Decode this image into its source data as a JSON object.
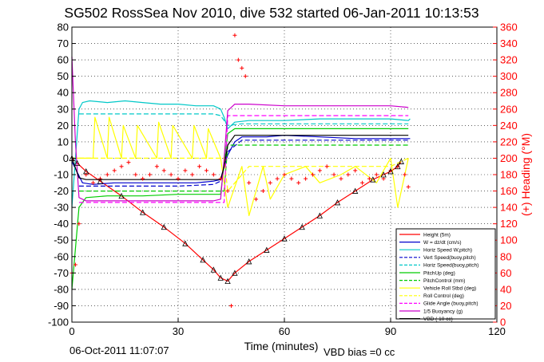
{
  "chart_data": {
    "type": "line",
    "title": "SG502 RossSea Nov 2010, dive 532 started 06-Jan-2011 10:13:53",
    "xlabel": "Time (minutes)",
    "ylabel_right": "(+) Heading (°M)",
    "xlim": [
      0,
      120
    ],
    "ylim": [
      -100,
      80
    ],
    "ylim_right": [
      0,
      360
    ],
    "x_ticks": [
      0,
      30,
      60,
      90,
      120
    ],
    "y_ticks": [
      80,
      70,
      60,
      50,
      40,
      30,
      20,
      10,
      0,
      -10,
      -20,
      -30,
      -40,
      -50,
      -60,
      -70,
      -80,
      -90,
      -100
    ],
    "y_ticks_right": [
      360,
      340,
      320,
      300,
      280,
      260,
      240,
      220,
      200,
      180,
      160,
      140,
      120,
      100,
      80,
      60,
      40,
      20,
      0
    ],
    "grid": true,
    "legend_position": "bottom-right",
    "footer_left": "06-Oct-2011 11:07:07",
    "footer_right": "VBD bias =0 cc",
    "series": [
      {
        "name": "Height (5m)",
        "color": "#ff0000",
        "style": "solid",
        "x": [
          0,
          1.5,
          4,
          8,
          14,
          20,
          26,
          32,
          37,
          40,
          42,
          44,
          46,
          50,
          55,
          60,
          65,
          70,
          75,
          80,
          85,
          88,
          90,
          92,
          93
        ],
        "y": [
          0,
          -3,
          -8,
          -14,
          -23,
          -33,
          -42,
          -52,
          -62,
          -68,
          -73,
          -75,
          -70,
          -63,
          -56,
          -49,
          -42,
          -35,
          -27,
          -20,
          -13,
          -10,
          -8,
          -5,
          -2
        ]
      },
      {
        "name": "W = dz/dt (cm/s)",
        "color": "#0000cc",
        "style": "solid",
        "x": [
          0,
          3,
          6,
          12,
          20,
          30,
          35,
          40,
          42,
          43,
          44,
          46,
          48,
          55,
          60,
          70,
          80,
          90,
          94,
          95.5
        ],
        "y": [
          -2,
          -15,
          -16,
          -15,
          -15,
          -15,
          -15,
          -14,
          -13,
          -5,
          2,
          10,
          13,
          13,
          14,
          13,
          12,
          12,
          12,
          12
        ]
      },
      {
        "name": "Horiz Speed W,pitch)",
        "color": "#00c8c8",
        "style": "solid",
        "x": [
          0,
          2,
          3,
          5,
          10,
          15,
          20,
          25,
          30,
          35,
          40,
          42,
          43,
          44,
          46,
          50,
          60,
          70,
          80,
          90,
          95,
          95.5
        ],
        "y": [
          -30,
          30,
          34,
          35,
          34,
          35,
          34,
          33,
          33,
          32,
          32,
          30,
          25,
          18,
          22,
          23,
          23,
          24,
          24,
          24,
          23,
          24
        ]
      },
      {
        "name": "Vert Speed(buoy,pitch)",
        "color": "#0000cc",
        "style": "dashed",
        "x": [
          2,
          10,
          20,
          30,
          40,
          42,
          44,
          48,
          60,
          70,
          80,
          90,
          95
        ],
        "y": [
          -17,
          -17,
          -17,
          -17,
          -16,
          -14,
          4,
          11,
          11,
          11,
          11,
          11,
          11
        ]
      },
      {
        "name": "Horiz Speed(buoy,pitch)",
        "color": "#00c8c8",
        "style": "dashed",
        "x": [
          2,
          10,
          20,
          30,
          40,
          42,
          44,
          48,
          60,
          70,
          80,
          90,
          95
        ],
        "y": [
          27,
          27,
          27,
          27,
          27,
          26,
          20,
          21,
          21,
          21,
          21,
          21,
          21
        ]
      },
      {
        "name": "PitchUp (deg)",
        "color": "#00cc00",
        "style": "solid",
        "x": [
          0,
          2,
          4,
          10,
          20,
          30,
          40,
          42,
          44,
          46,
          50,
          60,
          70,
          80,
          90,
          95
        ],
        "y": [
          -80,
          -30,
          -24,
          -23,
          -23,
          -22,
          -22,
          -22,
          15,
          18,
          18,
          18,
          18,
          18,
          18,
          18
        ]
      },
      {
        "name": "PitchControl (mm)",
        "color": "#00cc00",
        "style": "dashed",
        "x": [
          2,
          10,
          20,
          30,
          40,
          43,
          44,
          50,
          60,
          70,
          80,
          90,
          95
        ],
        "y": [
          -20,
          -20,
          -20,
          -20,
          -20,
          -20,
          8,
          8,
          8,
          8,
          8,
          8,
          8
        ]
      },
      {
        "name": "Vehicle Roll Stbd (deg)",
        "color": "#ffff00",
        "style": "solid",
        "x": [
          0,
          4,
          6,
          6.5,
          10,
          10.5,
          14,
          14.5,
          18,
          18.5,
          24,
          24.5,
          28,
          28.5,
          34,
          34.5,
          38,
          38.5,
          42,
          44,
          48,
          50,
          54,
          56,
          60,
          66,
          70,
          76,
          80,
          86,
          90,
          92,
          95
        ],
        "y": [
          0,
          0,
          0,
          25,
          0,
          25,
          0,
          20,
          0,
          20,
          0,
          22,
          0,
          20,
          0,
          20,
          0,
          18,
          0,
          -30,
          -5,
          -35,
          -5,
          -25,
          -10,
          -5,
          -15,
          -10,
          -5,
          -15,
          0,
          -30,
          0
        ]
      },
      {
        "name": "Roll Control (deg)",
        "color": "#ffff00",
        "style": "dashed",
        "x": [
          0,
          10,
          20,
          30,
          40,
          43,
          44,
          50,
          60,
          70,
          80,
          90,
          95
        ],
        "y": [
          0,
          0,
          0,
          0,
          0,
          0,
          -20,
          -5,
          -5,
          -5,
          -5,
          -5,
          0
        ]
      },
      {
        "name": "Glide Angle (buoy,pitch)",
        "color": "#ff00ff",
        "style": "dashed",
        "x": [
          2,
          10,
          20,
          30,
          40,
          43,
          44,
          50,
          60,
          70,
          80,
          90,
          95
        ],
        "y": [
          -27,
          -27,
          -27,
          -27,
          -27,
          -27,
          26,
          26,
          26,
          26,
          26,
          26,
          26
        ]
      },
      {
        "name": "1/5 Buoyancy (g)",
        "color": "#cc00cc",
        "style": "solid",
        "x": [
          0,
          1,
          2,
          4,
          10,
          20,
          30,
          40,
          42,
          43,
          44,
          46,
          50,
          60,
          70,
          80,
          90,
          95
        ],
        "y": [
          62,
          10,
          -24,
          -26,
          -26,
          -26,
          -26,
          -26,
          -25,
          0,
          29,
          33,
          33,
          32,
          32,
          32,
          32,
          31
        ]
      },
      {
        "name": "VBD ( 10 cc)",
        "color": "#000000",
        "style": "solid",
        "x": [
          0,
          2,
          4,
          10,
          20,
          30,
          40,
          42,
          43,
          44,
          46,
          50,
          60,
          70,
          80,
          90,
          95
        ],
        "y": [
          0,
          -12,
          -13,
          -13,
          -13,
          -13,
          -13,
          -13,
          -5,
          8,
          14,
          14,
          14,
          14,
          14,
          14,
          14
        ]
      }
    ],
    "heading_series": {
      "name": "(+) Heading (°M)",
      "color": "#ff0000",
      "marker": "+",
      "x": [
        0,
        1,
        2,
        4,
        6,
        8,
        10,
        12,
        14,
        16,
        18,
        20,
        22,
        24,
        26,
        28,
        30,
        32,
        34,
        36,
        38,
        40,
        42,
        44,
        45,
        46,
        47,
        48,
        49,
        50,
        52,
        54,
        56,
        58,
        60,
        62,
        64,
        66,
        68,
        70,
        72,
        74,
        76,
        78,
        80,
        82,
        84,
        86,
        88,
        90,
        92,
        94,
        95
      ],
      "y": [
        60,
        70,
        120,
        180,
        170,
        175,
        180,
        185,
        190,
        195,
        180,
        175,
        180,
        190,
        185,
        180,
        175,
        185,
        180,
        190,
        185,
        180,
        175,
        160,
        20,
        350,
        320,
        310,
        300,
        170,
        150,
        160,
        170,
        175,
        180,
        175,
        170,
        175,
        180,
        185,
        190,
        180,
        175,
        180,
        185,
        170,
        175,
        180,
        175,
        185,
        190,
        180,
        165
      ]
    },
    "markers_on": "Height (5m)"
  }
}
